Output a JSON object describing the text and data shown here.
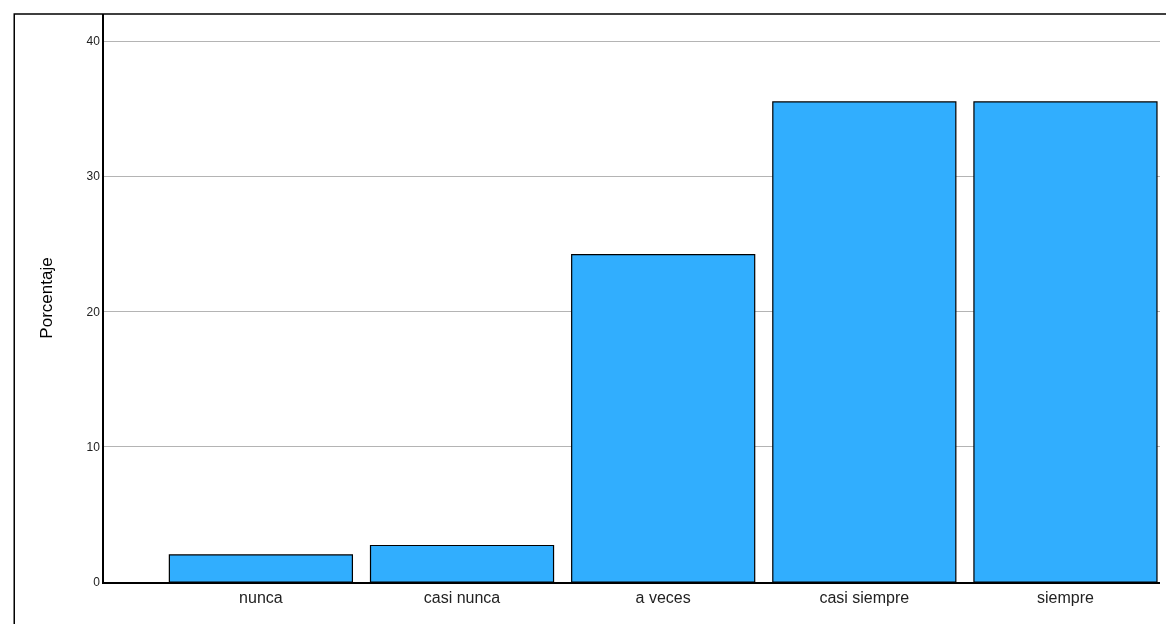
{
  "chart_data": {
    "type": "bar",
    "ylabel": "Porcentaje",
    "categories": [
      "nunca",
      "casi nunca",
      "a veces",
      "casi siempre",
      "siempre"
    ],
    "values": [
      2.0,
      2.7,
      24.2,
      35.5,
      35.5
    ],
    "color": "#31aefe",
    "ylim": [
      0,
      42
    ],
    "yticks": [
      0,
      10,
      20,
      30,
      40
    ],
    "grid": "y",
    "legend": false
  }
}
